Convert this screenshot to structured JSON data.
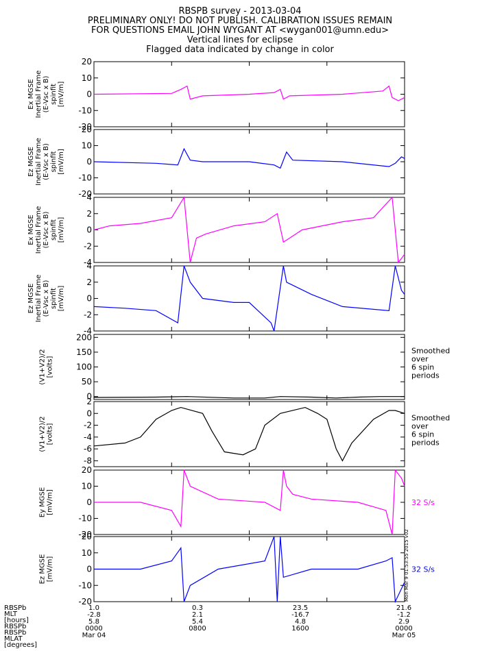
{
  "header": {
    "title": "RBSPB survey - 2013-03-04",
    "line2": "PRELIMINARY ONLY! DO NOT PUBLISH. CALIBRATION ISSUES REMAIN",
    "line3": "FOR QUESTIONS EMAIL JOHN WYGANT AT <wygan001@umn.edu>",
    "line4": "Vertical lines for eclipse",
    "line5": "Flagged data indicated by change in color"
  },
  "colors": {
    "magenta": "#ff00ff",
    "blue": "#0000ff",
    "black": "#000000"
  },
  "chart_data": [
    {
      "type": "line",
      "ylabel": [
        "Ex MGSE",
        "Inertial Frame",
        "(E-Vsc x B)",
        "spinfit",
        "[mV/m]"
      ],
      "ylim": [
        -20,
        20
      ],
      "yticks": [
        20,
        10,
        0,
        -10,
        -20
      ],
      "color": "magenta",
      "right_label": "",
      "series": [
        {
          "x": [
            0,
            0.25,
            0.28,
            0.3,
            0.31,
            0.35,
            0.5,
            0.58,
            0.6,
            0.61,
            0.63,
            0.8,
            0.93,
            0.95,
            0.96,
            0.98,
            1.0
          ],
          "values": [
            0,
            0.5,
            3,
            5,
            -3,
            -1,
            0,
            1,
            3,
            -3,
            -1,
            0,
            2,
            5,
            -2,
            -4,
            -2
          ]
        }
      ]
    },
    {
      "type": "line",
      "ylabel": [
        "Ez MGSE",
        "Inertial Frame",
        "(E-Vsc x B)",
        "spinfit",
        "[mV/m]"
      ],
      "ylim": [
        -20,
        20
      ],
      "yticks": [
        20,
        10,
        0,
        -10,
        -20
      ],
      "color": "blue",
      "right_label": "",
      "series": [
        {
          "x": [
            0,
            0.2,
            0.27,
            0.29,
            0.31,
            0.35,
            0.5,
            0.58,
            0.6,
            0.62,
            0.64,
            0.8,
            0.95,
            0.97,
            0.99,
            1.0
          ],
          "values": [
            0,
            -1,
            -2,
            8,
            1,
            0,
            0,
            -2,
            -4,
            6,
            1,
            0,
            -3,
            -1,
            3,
            2
          ]
        }
      ]
    },
    {
      "type": "line",
      "ylabel": [
        "Ex MGSE",
        "Inertial Frame",
        "(E-Vsc x B)",
        "spinfit",
        "[mV/m]"
      ],
      "ylim": [
        -4,
        4
      ],
      "yticks": [
        4,
        2,
        0,
        -2,
        -4
      ],
      "color": "magenta",
      "right_label": "",
      "series": [
        {
          "x": [
            0,
            0.05,
            0.15,
            0.25,
            0.29,
            0.31,
            0.33,
            0.36,
            0.45,
            0.55,
            0.59,
            0.61,
            0.63,
            0.67,
            0.8,
            0.9,
            0.96,
            0.98,
            1.0
          ],
          "values": [
            0,
            0.5,
            0.8,
            1.5,
            4,
            -4,
            -1,
            -0.5,
            0.5,
            1,
            2,
            -1.5,
            -1,
            0,
            1,
            1.5,
            4,
            -4,
            -3
          ]
        }
      ]
    },
    {
      "type": "line",
      "ylabel": [
        "Ez MGSE",
        "Inertial Frame",
        "(E-Vsc x B)",
        "spinfit",
        "[mV/m]"
      ],
      "ylim": [
        -4,
        4
      ],
      "yticks": [
        4,
        2,
        0,
        -2,
        -4
      ],
      "color": "blue",
      "right_label": "",
      "series": [
        {
          "x": [
            0,
            0.1,
            0.2,
            0.27,
            0.29,
            0.31,
            0.35,
            0.45,
            0.5,
            0.57,
            0.58,
            0.61,
            0.62,
            0.7,
            0.8,
            0.95,
            0.97,
            0.99,
            1.0
          ],
          "values": [
            -1,
            -1.2,
            -1.5,
            -3,
            4,
            2,
            0,
            -0.5,
            -0.5,
            -3,
            -4,
            4,
            2,
            0.5,
            -1,
            -1.5,
            4,
            1,
            0.5
          ]
        }
      ]
    },
    {
      "type": "line",
      "ylabel": [
        "(V1+V2)/2",
        "[volts]"
      ],
      "ylim": [
        -10,
        210
      ],
      "yticks": [
        200,
        150,
        100,
        50,
        0
      ],
      "color": "black",
      "right_label": [
        "Smoothed",
        "over",
        "6 spin",
        "periods"
      ],
      "series": [
        {
          "x": [
            0,
            0.2,
            0.3,
            0.45,
            0.55,
            0.6,
            0.7,
            0.78,
            0.85,
            0.92,
            1.0
          ],
          "values": [
            -3,
            -2,
            0,
            -5,
            -5,
            0,
            -2,
            -5,
            -2,
            0,
            0
          ]
        }
      ]
    },
    {
      "type": "line",
      "ylabel": [
        "(V1+V2)/2",
        "[volts]"
      ],
      "ylim": [
        -9,
        2
      ],
      "yticks": [
        2,
        0,
        -2,
        -4,
        -6,
        -8
      ],
      "color": "black",
      "right_label": [
        "Smoothed",
        "over",
        "6 spin",
        "periods"
      ],
      "series": [
        {
          "x": [
            0,
            0.1,
            0.15,
            0.2,
            0.25,
            0.28,
            0.35,
            0.38,
            0.42,
            0.48,
            0.52,
            0.55,
            0.6,
            0.68,
            0.72,
            0.75,
            0.78,
            0.8,
            0.83,
            0.9,
            0.95,
            0.97,
            1.0
          ],
          "values": [
            -5.5,
            -5,
            -4,
            -1,
            0.5,
            1,
            0,
            -3,
            -6.5,
            -7,
            -6,
            -2,
            0,
            1,
            0,
            -1,
            -6,
            -8,
            -5,
            -1,
            0.5,
            0.5,
            0
          ]
        }
      ]
    },
    {
      "type": "line",
      "ylabel": [
        "Ey MGSE",
        "[mV/m]"
      ],
      "ylim": [
        -20,
        20
      ],
      "yticks": [
        20,
        10,
        0,
        -10,
        -20
      ],
      "color": "magenta",
      "right_label": [
        "32 S/s"
      ],
      "series": [
        {
          "x": [
            0,
            0.15,
            0.25,
            0.28,
            0.29,
            0.31,
            0.4,
            0.55,
            0.6,
            0.61,
            0.62,
            0.64,
            0.7,
            0.85,
            0.94,
            0.96,
            0.97,
            0.99,
            1.0
          ],
          "values": [
            0,
            0,
            -5,
            -15,
            20,
            10,
            2,
            0,
            -5,
            20,
            10,
            5,
            2,
            0,
            -5,
            -20,
            20,
            15,
            10
          ]
        }
      ]
    },
    {
      "type": "line",
      "ylabel": [
        "Ez MGSE",
        "[mV/m]"
      ],
      "ylim": [
        -20,
        20
      ],
      "yticks": [
        20,
        10,
        0,
        -10,
        -20
      ],
      "color": "blue",
      "right_label": [
        "32 S/s"
      ],
      "series": [
        {
          "x": [
            0,
            0.15,
            0.25,
            0.28,
            0.29,
            0.31,
            0.4,
            0.55,
            0.58,
            0.59,
            0.6,
            0.61,
            0.7,
            0.85,
            0.94,
            0.96,
            0.97,
            0.99,
            1.0
          ],
          "values": [
            0,
            0,
            5,
            13,
            -20,
            -10,
            0,
            5,
            20,
            -20,
            20,
            -5,
            0,
            0,
            5,
            7,
            -20,
            -12,
            -8
          ]
        }
      ]
    }
  ],
  "footer": {
    "row_labels": [
      "RBSPb",
      "MLT",
      "[hours]",
      "RBSPb",
      "RBSPb",
      "MLAT",
      "[degrees]"
    ],
    "columns": [
      {
        "values": [
          "1.0",
          "-2.8",
          "5.8",
          "0000",
          "Mar 04"
        ]
      },
      {
        "values": [
          "0.3",
          "2.1",
          "5.4",
          "0800",
          ""
        ]
      },
      {
        "values": [
          "23.5",
          "-16.7",
          "4.8",
          "1600",
          ""
        ]
      },
      {
        "values": [
          "21.6",
          "-1.2",
          "2.9",
          "0000",
          "Mar 05"
        ]
      }
    ],
    "timestamp": "Mon Mar 9 01:53:55 2015 v02"
  }
}
